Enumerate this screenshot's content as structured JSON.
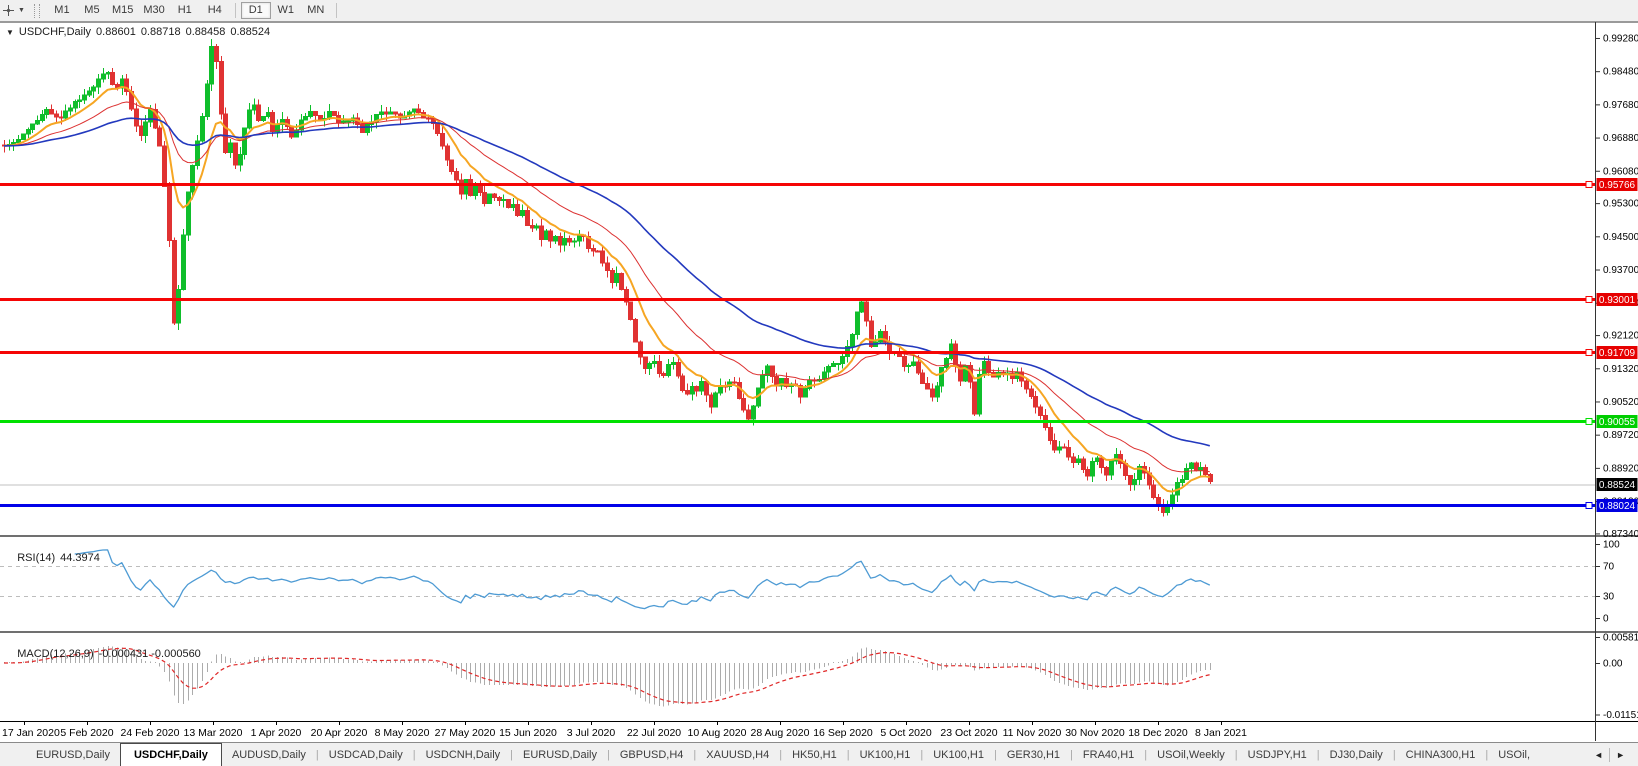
{
  "toolbar": {
    "cursor_tool": "crosshair",
    "timeframes": [
      {
        "label": "M1",
        "active": false
      },
      {
        "label": "M5",
        "active": false
      },
      {
        "label": "M15",
        "active": false
      },
      {
        "label": "M30",
        "active": false
      },
      {
        "label": "H1",
        "active": false
      },
      {
        "label": "H4",
        "active": false
      },
      {
        "label": "D1",
        "active": true
      },
      {
        "label": "W1",
        "active": false
      },
      {
        "label": "MN",
        "active": false
      }
    ]
  },
  "chart_header": {
    "expander": "▼",
    "symbol": "USDCHF,Daily",
    "open": "0.88601",
    "high": "0.88718",
    "low": "0.88458",
    "close": "0.88524"
  },
  "rsi_panel": {
    "name": "RSI(14)",
    "value": "44.3974",
    "axis_labels": [
      "100",
      "70",
      "30",
      "0"
    ]
  },
  "macd_panel": {
    "name": "MACD(12,26,9)",
    "values": "-0.000431 -0.000560",
    "axis_labels": [
      "0.005818",
      "0.00",
      "-0.011514"
    ]
  },
  "tabs": {
    "items": [
      {
        "label": "EURUSD,Daily",
        "active": false
      },
      {
        "label": "USDCHF,Daily",
        "active": true
      },
      {
        "label": "AUDUSD,Daily",
        "active": false
      },
      {
        "label": "USDCAD,Daily",
        "active": false
      },
      {
        "label": "USDCNH,Daily",
        "active": false
      },
      {
        "label": "EURUSD,Daily",
        "active": false
      },
      {
        "label": "GBPUSD,H4",
        "active": false
      },
      {
        "label": "XAUUSD,H4",
        "active": false
      },
      {
        "label": "HK50,H1",
        "active": false
      },
      {
        "label": "UK100,H1",
        "active": false
      },
      {
        "label": "UK100,H1",
        "active": false
      },
      {
        "label": "GER30,H1",
        "active": false
      },
      {
        "label": "FRA40,H1",
        "active": false
      },
      {
        "label": "USOil,Weekly",
        "active": false
      },
      {
        "label": "USDJPY,H1",
        "active": false
      },
      {
        "label": "DJ30,Daily",
        "active": false
      },
      {
        "label": "CHINA300,H1",
        "active": false
      },
      {
        "label": "USOil,",
        "active": false
      }
    ],
    "scroll_left": "◄",
    "scroll_right": "►"
  },
  "chart_data": {
    "type": "candlestick",
    "symbol": "USDCHF",
    "timeframe": "Daily",
    "visible_ohlc": {
      "open": 0.88601,
      "high": 0.88718,
      "low": 0.88458,
      "close": 0.88524
    },
    "ylim": [
      0.87302,
      0.99665
    ],
    "y_axis_labels": [
      "0.99280",
      "0.98480",
      "0.97680",
      "0.96880",
      "0.96080",
      "0.95300",
      "0.94500",
      "0.93700",
      "0.92900",
      "0.92120",
      "0.91320",
      "0.90520",
      "0.89720",
      "0.88920",
      "0.88120",
      "0.87340"
    ],
    "x_dates": [
      "17 Jan 2020",
      "5 Feb 2020",
      "24 Feb 2020",
      "13 Mar 2020",
      "1 Apr 2020",
      "20 Apr 2020",
      "8 May 2020",
      "27 May 2020",
      "15 Jun 2020",
      "3 Jul 2020",
      "22 Jul 2020",
      "10 Aug 2020",
      "28 Aug 2020",
      "16 Sep 2020",
      "5 Oct 2020",
      "23 Oct 2020",
      "11 Nov 2020",
      "30 Nov 2020",
      "18 Dec 2020",
      "8 Jan 2021"
    ],
    "hlines": [
      {
        "price": 0.95766,
        "label": "0.95766",
        "color": "#F50505",
        "label_bg": "#E60000",
        "width": 3
      },
      {
        "price": 0.93001,
        "label": "0.93001",
        "color": "#F50505",
        "label_bg": "#E60000",
        "width": 3
      },
      {
        "price": 0.91709,
        "label": "0.91709",
        "color": "#F50505",
        "label_bg": "#E60000",
        "width": 3
      },
      {
        "price": 0.90055,
        "label": "0.90055",
        "color": "#00E100",
        "label_bg": "#00CE00",
        "width": 3
      },
      {
        "price": 0.88024,
        "label": "0.88024",
        "color": "#0202E8",
        "label_bg": "#0000E0",
        "width": 3
      }
    ],
    "current_price": {
      "value": 0.88524,
      "label": "0.88524",
      "line_color": "#C0C0C0",
      "label_bg": "#000000"
    },
    "candles": {
      "count": 257,
      "start_x": 4,
      "spacing": 4.71,
      "width": 3,
      "seed": 20210108,
      "close_noise": 0.0006,
      "wick_max": 0.0018,
      "up_color": "#0FBE2B",
      "down_color": "#E03232"
    },
    "close_path_anchors": [
      [
        4,
        0.9665
      ],
      [
        25,
        0.97
      ],
      [
        45,
        0.9755
      ],
      [
        58,
        0.9735
      ],
      [
        70,
        0.976
      ],
      [
        85,
        0.979
      ],
      [
        100,
        0.9832
      ],
      [
        108,
        0.9846
      ],
      [
        115,
        0.9798
      ],
      [
        122,
        0.9834
      ],
      [
        132,
        0.9748
      ],
      [
        140,
        0.9692
      ],
      [
        150,
        0.9754
      ],
      [
        158,
        0.969
      ],
      [
        164,
        0.958
      ],
      [
        169,
        0.943
      ],
      [
        173,
        0.9238
      ],
      [
        178,
        0.9312
      ],
      [
        183,
        0.946
      ],
      [
        188,
        0.9558
      ],
      [
        194,
        0.964
      ],
      [
        200,
        0.9706
      ],
      [
        206,
        0.98
      ],
      [
        211,
        0.9902
      ],
      [
        214,
        0.9918
      ],
      [
        218,
        0.983
      ],
      [
        222,
        0.97
      ],
      [
        227,
        0.9632
      ],
      [
        231,
        0.9688
      ],
      [
        236,
        0.9602
      ],
      [
        241,
        0.9665
      ],
      [
        247,
        0.9744
      ],
      [
        252,
        0.9774
      ],
      [
        259,
        0.972
      ],
      [
        266,
        0.9756
      ],
      [
        273,
        0.97
      ],
      [
        281,
        0.9732
      ],
      [
        291,
        0.9692
      ],
      [
        301,
        0.9728
      ],
      [
        311,
        0.9752
      ],
      [
        321,
        0.9728
      ],
      [
        331,
        0.9756
      ],
      [
        341,
        0.9718
      ],
      [
        351,
        0.9738
      ],
      [
        361,
        0.9702
      ],
      [
        371,
        0.9728
      ],
      [
        381,
        0.9748
      ],
      [
        391,
        0.9752
      ],
      [
        401,
        0.9728
      ],
      [
        411,
        0.9756
      ],
      [
        421,
        0.9742
      ],
      [
        431,
        0.9736
      ],
      [
        437,
        0.9696
      ],
      [
        443,
        0.9655
      ],
      [
        449,
        0.9612
      ],
      [
        455,
        0.9585
      ],
      [
        461,
        0.9555
      ],
      [
        466,
        0.9584
      ],
      [
        471,
        0.9546
      ],
      [
        476,
        0.9574
      ],
      [
        481,
        0.955
      ],
      [
        486,
        0.9526
      ],
      [
        491,
        0.956
      ],
      [
        496,
        0.953
      ],
      [
        501,
        0.955
      ],
      [
        506,
        0.9516
      ],
      [
        511,
        0.9536
      ],
      [
        516,
        0.9496
      ],
      [
        521,
        0.9516
      ],
      [
        526,
        0.9476
      ],
      [
        531,
        0.9466
      ],
      [
        536,
        0.9482
      ],
      [
        541,
        0.9446
      ],
      [
        546,
        0.9466
      ],
      [
        551,
        0.9436
      ],
      [
        556,
        0.9452
      ],
      [
        561,
        0.9426
      ],
      [
        566,
        0.9446
      ],
      [
        571,
        0.9426
      ],
      [
        576,
        0.945
      ],
      [
        581,
        0.946
      ],
      [
        586,
        0.943
      ],
      [
        591,
        0.94
      ],
      [
        596,
        0.9426
      ],
      [
        601,
        0.9396
      ],
      [
        606,
        0.937
      ],
      [
        611,
        0.934
      ],
      [
        616,
        0.936
      ],
      [
        621,
        0.932
      ],
      [
        626,
        0.929
      ],
      [
        631,
        0.925
      ],
      [
        636,
        0.919
      ],
      [
        641,
        0.915
      ],
      [
        646,
        0.9128
      ],
      [
        651,
        0.9158
      ],
      [
        656,
        0.9132
      ],
      [
        661,
        0.9104
      ],
      [
        666,
        0.9132
      ],
      [
        671,
        0.915
      ],
      [
        676,
        0.9122
      ],
      [
        681,
        0.9082
      ],
      [
        686,
        0.9062
      ],
      [
        691,
        0.909
      ],
      [
        696,
        0.9072
      ],
      [
        701,
        0.91
      ],
      [
        706,
        0.9062
      ],
      [
        711,
        0.9042
      ],
      [
        716,
        0.9072
      ],
      [
        721,
        0.9098
      ],
      [
        726,
        0.9082
      ],
      [
        731,
        0.9108
      ],
      [
        736,
        0.9082
      ],
      [
        741,
        0.9042
      ],
      [
        746,
        0.9012
      ],
      [
        749,
        0.9004
      ],
      [
        753,
        0.9048
      ],
      [
        757,
        0.9082
      ],
      [
        761,
        0.9108
      ],
      [
        766,
        0.9138
      ],
      [
        771,
        0.9122
      ],
      [
        776,
        0.9092
      ],
      [
        781,
        0.9108
      ],
      [
        786,
        0.9082
      ],
      [
        791,
        0.91
      ],
      [
        796,
        0.9082
      ],
      [
        801,
        0.9062
      ],
      [
        806,
        0.9088
      ],
      [
        811,
        0.9108
      ],
      [
        816,
        0.9092
      ],
      [
        821,
        0.9108
      ],
      [
        826,
        0.9128
      ],
      [
        831,
        0.9148
      ],
      [
        836,
        0.9138
      ],
      [
        841,
        0.9158
      ],
      [
        846,
        0.9178
      ],
      [
        851,
        0.9208
      ],
      [
        856,
        0.9258
      ],
      [
        859,
        0.9292
      ],
      [
        862,
        0.9298
      ],
      [
        865,
        0.9258
      ],
      [
        868,
        0.9222
      ],
      [
        871,
        0.9182
      ],
      [
        876,
        0.9198
      ],
      [
        881,
        0.9218
      ],
      [
        886,
        0.9188
      ],
      [
        891,
        0.9162
      ],
      [
        896,
        0.9178
      ],
      [
        901,
        0.9152
      ],
      [
        906,
        0.9132
      ],
      [
        911,
        0.9158
      ],
      [
        916,
        0.9138
      ],
      [
        921,
        0.9102
      ],
      [
        926,
        0.9082
      ],
      [
        931,
        0.9062
      ],
      [
        936,
        0.9088
      ],
      [
        941,
        0.9128
      ],
      [
        946,
        0.9158
      ],
      [
        951,
        0.9188
      ],
      [
        954,
        0.9158
      ],
      [
        957,
        0.9128
      ],
      [
        960,
        0.9102
      ],
      [
        963,
        0.9128
      ],
      [
        966,
        0.9148
      ],
      [
        969,
        0.9118
      ],
      [
        971,
        0.9052
      ],
      [
        973,
        0.8992
      ],
      [
        976,
        0.9058
      ],
      [
        979,
        0.9118
      ],
      [
        983,
        0.9148
      ],
      [
        986,
        0.9128
      ],
      [
        991,
        0.9108
      ],
      [
        996,
        0.9128
      ],
      [
        1001,
        0.9112
      ],
      [
        1006,
        0.9128
      ],
      [
        1011,
        0.9108
      ],
      [
        1016,
        0.9122
      ],
      [
        1021,
        0.9108
      ],
      [
        1026,
        0.9088
      ],
      [
        1031,
        0.9068
      ],
      [
        1036,
        0.9038
      ],
      [
        1041,
        0.9008
      ],
      [
        1046,
        0.8978
      ],
      [
        1051,
        0.8948
      ],
      [
        1056,
        0.8928
      ],
      [
        1061,
        0.8958
      ],
      [
        1066,
        0.8928
      ],
      [
        1071,
        0.8898
      ],
      [
        1076,
        0.8918
      ],
      [
        1081,
        0.8898
      ],
      [
        1086,
        0.8868
      ],
      [
        1091,
        0.8898
      ],
      [
        1096,
        0.8918
      ],
      [
        1101,
        0.8898
      ],
      [
        1106,
        0.8878
      ],
      [
        1111,
        0.8908
      ],
      [
        1116,
        0.8928
      ],
      [
        1121,
        0.8898
      ],
      [
        1126,
        0.8868
      ],
      [
        1131,
        0.8848
      ],
      [
        1136,
        0.8878
      ],
      [
        1141,
        0.8898
      ],
      [
        1146,
        0.8868
      ],
      [
        1151,
        0.8838
      ],
      [
        1156,
        0.8806
      ],
      [
        1161,
        0.879
      ],
      [
        1164,
        0.8778
      ],
      [
        1167,
        0.88
      ],
      [
        1171,
        0.8818
      ],
      [
        1176,
        0.8848
      ],
      [
        1181,
        0.8868
      ],
      [
        1186,
        0.8888
      ],
      [
        1191,
        0.8904
      ],
      [
        1196,
        0.8888
      ],
      [
        1201,
        0.8898
      ],
      [
        1206,
        0.8878
      ],
      [
        1210,
        0.8852
      ]
    ],
    "moving_averages": [
      {
        "period": 10,
        "color": "#F6A623",
        "width": 2
      },
      {
        "period": 25,
        "color": "#DC3232",
        "width": 1
      },
      {
        "period": 55,
        "color": "#2339BE",
        "width": 1.6
      }
    ],
    "rsi_indicator": {
      "period": 14,
      "color": "#4E9BD4",
      "range": [
        0,
        100
      ],
      "guide_levels": [
        70,
        30
      ],
      "guide_color": "#BDBDBD"
    },
    "macd_indicator": {
      "fast": 12,
      "slow": 26,
      "signal": 9,
      "histogram_color": "#ACACAC",
      "signal_color": "#E02828"
    }
  }
}
